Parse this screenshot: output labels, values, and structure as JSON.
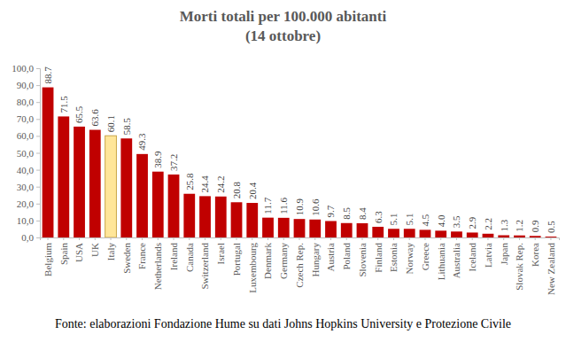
{
  "chart_data": {
    "type": "bar",
    "title": "Morti totali per 100.000 abitanti",
    "subtitle": "(14 ottobre)",
    "annotations": [
      "Fonte: elaborazioni Fondazione Hume su dati Johns Hopkins University e Protezione Civile"
    ],
    "categories": [
      "Belgium",
      "Spain",
      "USA",
      "UK",
      "Italy",
      "Sweden",
      "France",
      "Netherlands",
      "Ireland",
      "Canada",
      "Switzerland",
      "Israel",
      "Portugal",
      "Luxembourg",
      "Denmark",
      "Germany",
      "Czech Rep.",
      "Hungary",
      "Austria",
      "Poland",
      "Slovenia",
      "Finland",
      "Estonia",
      "Norway",
      "Greece",
      "Lithuania",
      "Australia",
      "Iceland",
      "Latvia",
      "Japan",
      "Slovak Rep.",
      "Korea",
      "New Zealand"
    ],
    "values": [
      88.7,
      71.5,
      65.5,
      63.6,
      60.1,
      58.5,
      49.3,
      38.9,
      37.2,
      25.8,
      24.4,
      24.2,
      20.8,
      20.4,
      11.7,
      11.6,
      10.9,
      10.6,
      9.7,
      8.5,
      8.4,
      6.3,
      5.1,
      5.1,
      4.5,
      4.0,
      3.5,
      2.9,
      2.2,
      1.3,
      1.2,
      0.9,
      0.5
    ],
    "value_labels": [
      "88.7",
      "71.5",
      "65.5",
      "63.6",
      "60.1",
      "58.5",
      "49.3",
      "38.9",
      "37.2",
      "25.8",
      "24.4",
      "24.2",
      "20.8",
      "20.4",
      "11.7",
      "11.6",
      "10.9",
      "10.6",
      "9.7",
      "8.5",
      "8.4",
      "6.3",
      "5.1",
      "5.1",
      "4.5",
      "4.0",
      "3.5",
      "2.9",
      "2.2",
      "1.3",
      "1.2",
      "0.9",
      "0.5"
    ],
    "colors": [
      "#c00000",
      "#c00000",
      "#c00000",
      "#c00000",
      "#ffe699",
      "#c00000",
      "#c00000",
      "#c00000",
      "#c00000",
      "#c00000",
      "#c00000",
      "#c00000",
      "#c00000",
      "#c00000",
      "#c00000",
      "#c00000",
      "#c00000",
      "#c00000",
      "#c00000",
      "#c00000",
      "#c00000",
      "#c00000",
      "#c00000",
      "#c00000",
      "#c00000",
      "#c00000",
      "#c00000",
      "#c00000",
      "#c00000",
      "#c00000",
      "#c00000",
      "#c00000",
      "#c00000"
    ],
    "ylim": [
      0,
      100
    ],
    "yticks": [
      {
        "value": 0,
        "label": "0,0"
      },
      {
        "value": 10,
        "label": "10,0"
      },
      {
        "value": 20,
        "label": "20,0"
      },
      {
        "value": 30,
        "label": "30,0"
      },
      {
        "value": 40,
        "label": "40,0"
      },
      {
        "value": 50,
        "label": "50,0"
      },
      {
        "value": 60,
        "label": "60,0"
      },
      {
        "value": 70,
        "label": "70,0"
      },
      {
        "value": 80,
        "label": "80,0"
      },
      {
        "value": 90,
        "label": "90,0"
      },
      {
        "value": 100,
        "label": "100,0"
      }
    ],
    "grid": false,
    "data_labels": true
  }
}
